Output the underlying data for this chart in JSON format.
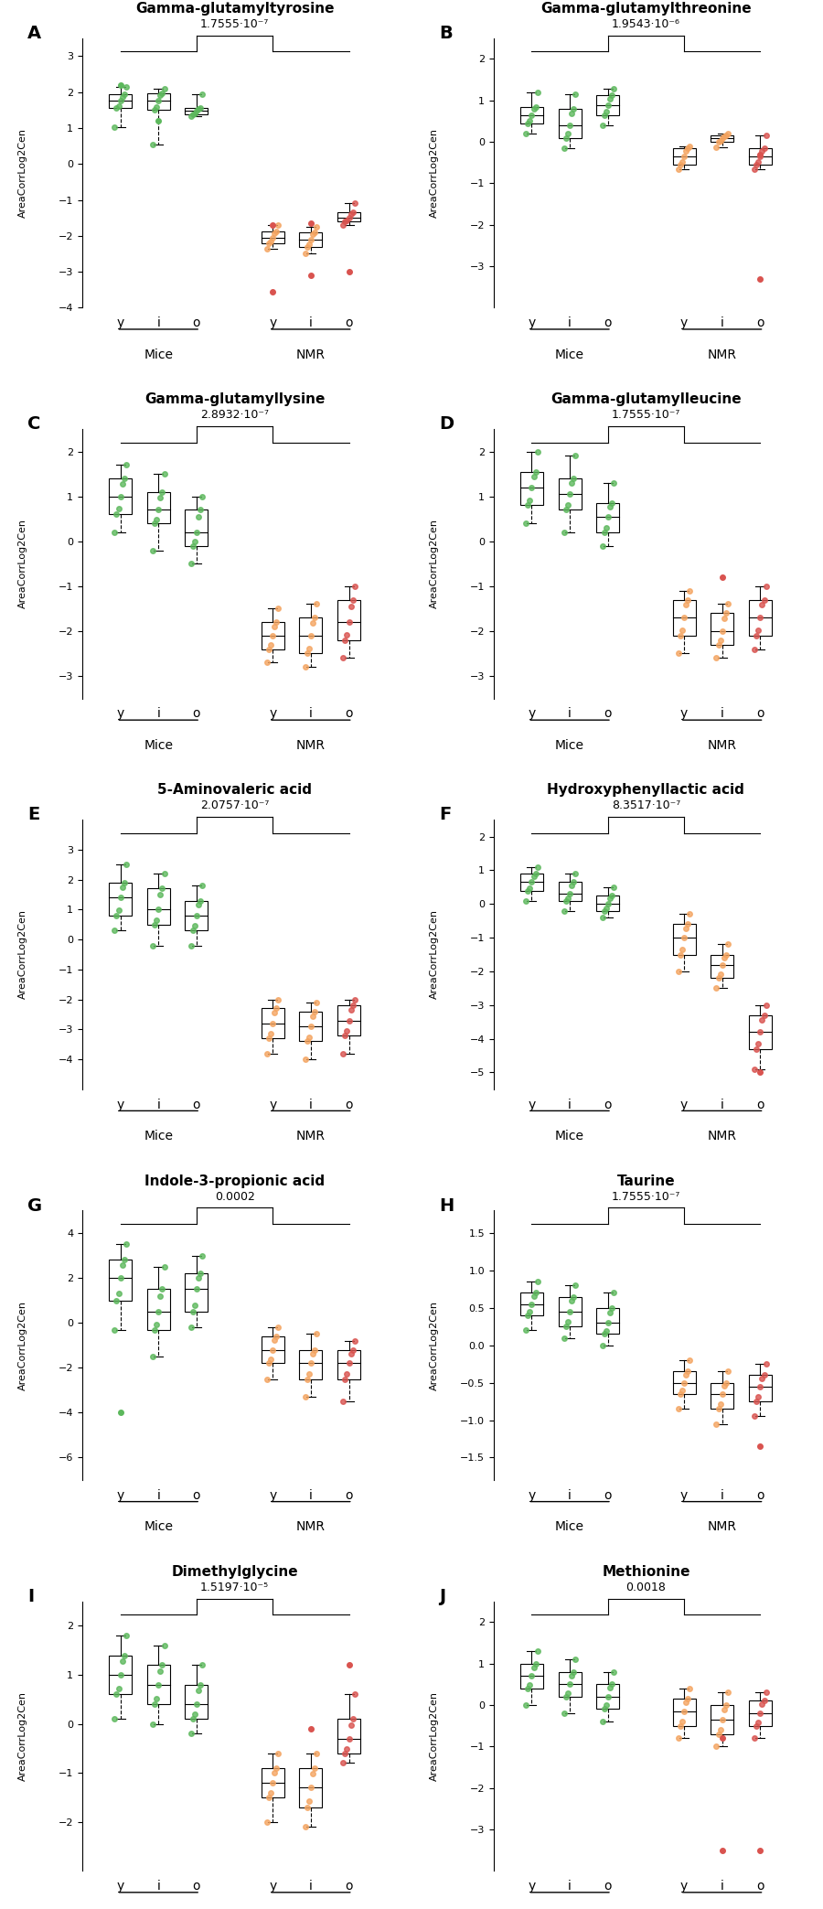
{
  "panels": [
    {
      "label": "A",
      "title": "Gamma-glutamyltyrosine",
      "pvalue": "1.7555·10⁻⁷",
      "pvalue_raw": "1.7555·10⁻⁷",
      "ylim": [
        -4,
        3.5
      ],
      "yticks": [
        -4,
        -3,
        -2,
        -1,
        0,
        1,
        2,
        3
      ],
      "mice": {
        "y": {
          "q1": 1.55,
          "med": 1.75,
          "q3": 1.93,
          "whislo": 1.02,
          "whishi": 2.15,
          "fliers": [
            2.2
          ]
        },
        "i": {
          "q1": 1.5,
          "med": 1.75,
          "q3": 1.97,
          "whislo": 0.55,
          "whishi": 2.1,
          "fliers": [
            1.2
          ]
        },
        "o": {
          "q1": 1.38,
          "med": 1.48,
          "q3": 1.55,
          "whislo": 1.32,
          "whishi": 1.93,
          "fliers": []
        }
      },
      "nmr": {
        "y": {
          "q1": -2.2,
          "med": -2.05,
          "q3": -1.88,
          "whislo": -2.35,
          "whishi": -1.7,
          "fliers": [
            -1.7,
            -3.55
          ]
        },
        "i": {
          "q1": -2.3,
          "med": -2.1,
          "q3": -1.9,
          "whislo": -2.5,
          "whishi": -1.75,
          "fliers": [
            -3.1,
            -1.65
          ]
        },
        "o": {
          "q1": -1.6,
          "med": -1.5,
          "q3": -1.35,
          "whislo": -1.7,
          "whishi": -1.1,
          "fliers": [
            -3.0
          ]
        }
      }
    },
    {
      "label": "B",
      "title": "Gamma-glutamylthreonine",
      "pvalue": "1.9543·10⁻⁶",
      "pvalue_raw": "1.9543·10⁻⁶",
      "ylim": [
        -4,
        2.5
      ],
      "yticks": [
        -3,
        -2,
        -1,
        0,
        1,
        2
      ],
      "mice": {
        "y": {
          "q1": 0.45,
          "med": 0.65,
          "q3": 0.85,
          "whislo": 0.2,
          "whishi": 1.2,
          "fliers": []
        },
        "i": {
          "q1": 0.1,
          "med": 0.4,
          "q3": 0.8,
          "whislo": -0.15,
          "whishi": 1.15,
          "fliers": []
        },
        "o": {
          "q1": 0.65,
          "med": 0.88,
          "q3": 1.12,
          "whislo": 0.4,
          "whishi": 1.28,
          "fliers": []
        }
      },
      "nmr": {
        "y": {
          "q1": -0.55,
          "med": -0.35,
          "q3": -0.15,
          "whislo": -0.65,
          "whishi": -0.1,
          "fliers": []
        },
        "i": {
          "q1": 0.0,
          "med": 0.08,
          "q3": 0.15,
          "whislo": -0.12,
          "whishi": 0.2,
          "fliers": []
        },
        "o": {
          "q1": -0.55,
          "med": -0.35,
          "q3": -0.15,
          "whislo": -0.65,
          "whishi": 0.15,
          "fliers": [
            -0.3,
            -3.3
          ]
        }
      }
    },
    {
      "label": "C",
      "title": "Gamma-glutamyllysine",
      "pvalue": "2.8932·10⁻⁷",
      "pvalue_raw": "2.8932·10⁻⁷",
      "ylim": [
        -3.5,
        2.5
      ],
      "yticks": [
        -3,
        -2,
        -1,
        0,
        1,
        2
      ],
      "mice": {
        "y": {
          "q1": 0.6,
          "med": 1.0,
          "q3": 1.4,
          "whislo": 0.2,
          "whishi": 1.7,
          "fliers": []
        },
        "i": {
          "q1": 0.4,
          "med": 0.7,
          "q3": 1.1,
          "whislo": -0.2,
          "whishi": 1.5,
          "fliers": []
        },
        "o": {
          "q1": -0.1,
          "med": 0.2,
          "q3": 0.7,
          "whislo": -0.5,
          "whishi": 1.0,
          "fliers": []
        }
      },
      "nmr": {
        "y": {
          "q1": -2.4,
          "med": -2.1,
          "q3": -1.8,
          "whislo": -2.7,
          "whishi": -1.5,
          "fliers": []
        },
        "i": {
          "q1": -2.5,
          "med": -2.1,
          "q3": -1.7,
          "whislo": -2.8,
          "whishi": -1.4,
          "fliers": []
        },
        "o": {
          "q1": -2.2,
          "med": -1.8,
          "q3": -1.3,
          "whislo": -2.6,
          "whishi": -1.0,
          "fliers": []
        }
      }
    },
    {
      "label": "D",
      "title": "Gamma-glutamylleucine",
      "pvalue": "1.7555·10⁻⁷",
      "pvalue_raw": "1.7555·10⁻⁷",
      "ylim": [
        -3.5,
        2.5
      ],
      "yticks": [
        -3,
        -2,
        -1,
        0,
        1,
        2
      ],
      "mice": {
        "y": {
          "q1": 0.8,
          "med": 1.2,
          "q3": 1.55,
          "whislo": 0.4,
          "whishi": 2.0,
          "fliers": []
        },
        "i": {
          "q1": 0.7,
          "med": 1.05,
          "q3": 1.4,
          "whislo": 0.2,
          "whishi": 1.9,
          "fliers": []
        },
        "o": {
          "q1": 0.2,
          "med": 0.55,
          "q3": 0.85,
          "whislo": -0.1,
          "whishi": 1.3,
          "fliers": []
        }
      },
      "nmr": {
        "y": {
          "q1": -2.1,
          "med": -1.7,
          "q3": -1.3,
          "whislo": -2.5,
          "whishi": -1.1,
          "fliers": []
        },
        "i": {
          "q1": -2.3,
          "med": -2.0,
          "q3": -1.6,
          "whislo": -2.6,
          "whishi": -1.4,
          "fliers": [
            -0.8
          ]
        },
        "o": {
          "q1": -2.1,
          "med": -1.7,
          "q3": -1.3,
          "whislo": -2.4,
          "whishi": -1.0,
          "fliers": []
        }
      }
    },
    {
      "label": "E",
      "title": "5-Aminovaleric acid",
      "pvalue": "2.0757·10⁻⁷",
      "pvalue_raw": "2.0757·10⁻⁷",
      "ylim": [
        -5,
        4
      ],
      "yticks": [
        -4,
        -3,
        -2,
        -1,
        0,
        1,
        2,
        3
      ],
      "mice": {
        "y": {
          "q1": 0.8,
          "med": 1.4,
          "q3": 1.9,
          "whislo": 0.3,
          "whishi": 2.5,
          "fliers": []
        },
        "i": {
          "q1": 0.5,
          "med": 1.0,
          "q3": 1.7,
          "whislo": -0.2,
          "whishi": 2.2,
          "fliers": []
        },
        "o": {
          "q1": 0.3,
          "med": 0.8,
          "q3": 1.3,
          "whislo": -0.2,
          "whishi": 1.8,
          "fliers": []
        }
      },
      "nmr": {
        "y": {
          "q1": -3.3,
          "med": -2.8,
          "q3": -2.3,
          "whislo": -3.8,
          "whishi": -2.0,
          "fliers": []
        },
        "i": {
          "q1": -3.4,
          "med": -2.9,
          "q3": -2.4,
          "whislo": -4.0,
          "whishi": -2.1,
          "fliers": []
        },
        "o": {
          "q1": -3.2,
          "med": -2.7,
          "q3": -2.2,
          "whislo": -3.8,
          "whishi": -2.0,
          "fliers": []
        }
      }
    },
    {
      "label": "F",
      "title": "Hydroxyphenyllactic acid",
      "pvalue": "8.3517·10⁻⁷",
      "pvalue_raw": "8.3517·10⁻⁷",
      "ylim": [
        -5.5,
        2.5
      ],
      "yticks": [
        -5,
        -4,
        -3,
        -2,
        -1,
        0,
        1,
        2
      ],
      "mice": {
        "y": {
          "q1": 0.4,
          "med": 0.65,
          "q3": 0.9,
          "whislo": 0.1,
          "whishi": 1.1,
          "fliers": []
        },
        "i": {
          "q1": 0.1,
          "med": 0.3,
          "q3": 0.65,
          "whislo": -0.2,
          "whishi": 0.9,
          "fliers": []
        },
        "o": {
          "q1": -0.2,
          "med": 0.0,
          "q3": 0.25,
          "whislo": -0.4,
          "whishi": 0.5,
          "fliers": []
        }
      },
      "nmr": {
        "y": {
          "q1": -1.5,
          "med": -1.0,
          "q3": -0.6,
          "whislo": -2.0,
          "whishi": -0.3,
          "fliers": []
        },
        "i": {
          "q1": -2.2,
          "med": -1.8,
          "q3": -1.5,
          "whislo": -2.5,
          "whishi": -1.2,
          "fliers": []
        },
        "o": {
          "q1": -4.3,
          "med": -3.8,
          "q3": -3.3,
          "whislo": -4.9,
          "whishi": -3.0,
          "fliers": [
            -5.0
          ]
        }
      }
    },
    {
      "label": "G",
      "title": "Indole-3-propionic acid",
      "pvalue": "0.0002",
      "pvalue_raw": "0.0002",
      "ylim": [
        -7,
        5
      ],
      "yticks": [
        -6,
        -4,
        -2,
        0,
        2,
        4
      ],
      "mice": {
        "y": {
          "q1": 1.0,
          "med": 2.0,
          "q3": 2.8,
          "whislo": -0.3,
          "whishi": 3.5,
          "fliers": [
            -4.0
          ]
        },
        "i": {
          "q1": -0.3,
          "med": 0.5,
          "q3": 1.5,
          "whislo": -1.5,
          "whishi": 2.5,
          "fliers": []
        },
        "o": {
          "q1": 0.5,
          "med": 1.5,
          "q3": 2.2,
          "whislo": -0.2,
          "whishi": 3.0,
          "fliers": []
        }
      },
      "nmr": {
        "y": {
          "q1": -1.8,
          "med": -1.2,
          "q3": -0.6,
          "whislo": -2.5,
          "whishi": -0.2,
          "fliers": []
        },
        "i": {
          "q1": -2.5,
          "med": -1.8,
          "q3": -1.2,
          "whislo": -3.3,
          "whishi": -0.5,
          "fliers": []
        },
        "o": {
          "q1": -2.5,
          "med": -1.8,
          "q3": -1.2,
          "whislo": -3.5,
          "whishi": -0.8,
          "fliers": []
        }
      }
    },
    {
      "label": "H",
      "title": "Taurine",
      "pvalue": "1.7555·10⁻⁷",
      "pvalue_raw": "1.7555·10⁻⁷",
      "ylim": [
        -1.8,
        1.8
      ],
      "yticks": [
        -1.5,
        -1.0,
        -0.5,
        0.0,
        0.5,
        1.0,
        1.5
      ],
      "mice": {
        "y": {
          "q1": 0.4,
          "med": 0.55,
          "q3": 0.7,
          "whislo": 0.2,
          "whishi": 0.85,
          "fliers": []
        },
        "i": {
          "q1": 0.25,
          "med": 0.45,
          "q3": 0.65,
          "whislo": 0.1,
          "whishi": 0.8,
          "fliers": []
        },
        "o": {
          "q1": 0.15,
          "med": 0.3,
          "q3": 0.5,
          "whislo": 0.0,
          "whishi": 0.7,
          "fliers": []
        }
      },
      "nmr": {
        "y": {
          "q1": -0.65,
          "med": -0.5,
          "q3": -0.35,
          "whislo": -0.85,
          "whishi": -0.2,
          "fliers": []
        },
        "i": {
          "q1": -0.85,
          "med": -0.65,
          "q3": -0.5,
          "whislo": -1.05,
          "whishi": -0.35,
          "fliers": []
        },
        "o": {
          "q1": -0.75,
          "med": -0.55,
          "q3": -0.4,
          "whislo": -0.95,
          "whishi": -0.25,
          "fliers": [
            -1.35
          ]
        }
      }
    },
    {
      "label": "I",
      "title": "Dimethylglycine",
      "pvalue": "1.5197·10⁻⁵",
      "pvalue_raw": "1.5197·10⁻⁵",
      "ylim": [
        -3.0,
        2.5
      ],
      "yticks": [
        -2,
        -1,
        0,
        1,
        2
      ],
      "mice": {
        "y": {
          "q1": 0.6,
          "med": 1.0,
          "q3": 1.4,
          "whislo": 0.1,
          "whishi": 1.8,
          "fliers": []
        },
        "i": {
          "q1": 0.4,
          "med": 0.8,
          "q3": 1.2,
          "whislo": 0.0,
          "whishi": 1.6,
          "fliers": []
        },
        "o": {
          "q1": 0.1,
          "med": 0.4,
          "q3": 0.8,
          "whislo": -0.2,
          "whishi": 1.2,
          "fliers": []
        }
      },
      "nmr": {
        "y": {
          "q1": -1.5,
          "med": -1.2,
          "q3": -0.9,
          "whislo": -2.0,
          "whishi": -0.6,
          "fliers": []
        },
        "i": {
          "q1": -1.7,
          "med": -1.3,
          "q3": -0.9,
          "whislo": -2.1,
          "whishi": -0.6,
          "fliers": [
            -0.1
          ]
        },
        "o": {
          "q1": -0.6,
          "med": -0.3,
          "q3": 0.1,
          "whislo": -0.8,
          "whishi": 0.6,
          "fliers": [
            1.2
          ]
        }
      }
    },
    {
      "label": "J",
      "title": "Methionine",
      "pvalue": "0.0018",
      "pvalue_raw": "0.0018",
      "ylim": [
        -4.0,
        2.5
      ],
      "yticks": [
        -3,
        -2,
        -1,
        0,
        1,
        2
      ],
      "mice": {
        "y": {
          "q1": 0.4,
          "med": 0.7,
          "q3": 1.0,
          "whislo": 0.0,
          "whishi": 1.3,
          "fliers": []
        },
        "i": {
          "q1": 0.2,
          "med": 0.5,
          "q3": 0.8,
          "whislo": -0.2,
          "whishi": 1.1,
          "fliers": []
        },
        "o": {
          "q1": -0.1,
          "med": 0.2,
          "q3": 0.5,
          "whislo": -0.4,
          "whishi": 0.8,
          "fliers": []
        }
      },
      "nmr": {
        "y": {
          "q1": -0.5,
          "med": -0.15,
          "q3": 0.15,
          "whislo": -0.8,
          "whishi": 0.4,
          "fliers": []
        },
        "i": {
          "q1": -0.7,
          "med": -0.35,
          "q3": 0.0,
          "whislo": -1.0,
          "whishi": 0.3,
          "fliers": [
            -3.5,
            -0.8
          ]
        },
        "o": {
          "q1": -0.5,
          "med": -0.2,
          "q3": 0.1,
          "whislo": -0.8,
          "whishi": 0.3,
          "fliers": [
            -3.5
          ]
        }
      }
    }
  ],
  "mice_color": "#5cb85c",
  "nmr_color": "#d9534f",
  "mice_color_light": "#90ee90",
  "nmr_color_light": "#f4a460",
  "box_facecolor_mice": "white",
  "box_facecolor_nmr": "white",
  "ylabel": "AreaCorrLog2Cen",
  "group_labels": [
    "y",
    "i",
    "o",
    "y",
    "i",
    "o"
  ],
  "group_names": [
    "Mice",
    "NMR"
  ],
  "background_color": "white"
}
